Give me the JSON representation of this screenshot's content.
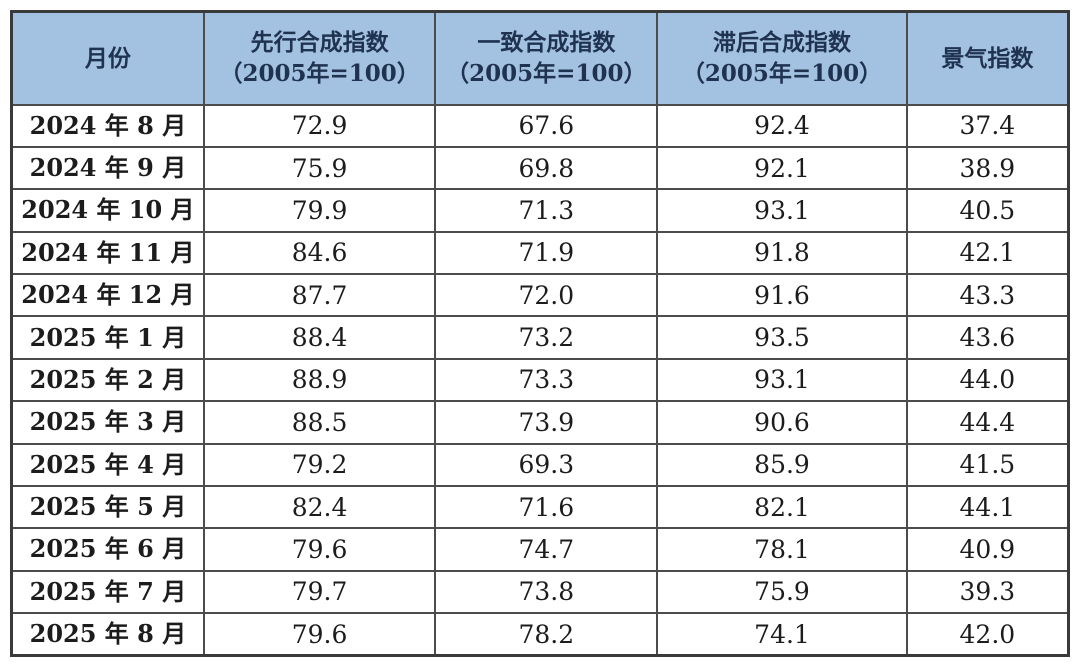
{
  "colors": {
    "header_bg": "#a3c1e0",
    "header_text": "#1f3351",
    "body_text": "#1c1c1c",
    "border_outer": "#3a3a3a",
    "border_inner": "#4c4c4c",
    "row_bg": "#ffffff"
  },
  "chart_data": {
    "type": "table",
    "title": "",
    "columns": [
      "月份",
      "先行合成指数（2005年=100）",
      "一致合成指数（2005年=100）",
      "滞后合成指数（2005年=100）",
      "景气指数"
    ],
    "rows": [
      [
        "2024 年 8 月",
        72.9,
        67.6,
        92.4,
        37.4
      ],
      [
        "2024 年 9 月",
        75.9,
        69.8,
        92.1,
        38.9
      ],
      [
        "2024 年 10 月",
        79.9,
        71.3,
        93.1,
        40.5
      ],
      [
        "2024 年 11 月",
        84.6,
        71.9,
        91.8,
        42.1
      ],
      [
        "2024 年 12 月",
        87.7,
        72.0,
        91.6,
        43.3
      ],
      [
        "2025 年 1 月",
        88.4,
        73.2,
        93.5,
        43.6
      ],
      [
        "2025 年 2 月",
        88.9,
        73.3,
        93.1,
        44.0
      ],
      [
        "2025 年 3 月",
        88.5,
        73.9,
        90.6,
        44.4
      ],
      [
        "2025 年 4 月",
        79.2,
        69.3,
        85.9,
        41.5
      ],
      [
        "2025 年 5 月",
        82.4,
        71.6,
        82.1,
        44.1
      ],
      [
        "2025 年 6 月",
        79.6,
        74.7,
        78.1,
        40.9
      ],
      [
        "2025 年 7 月",
        79.7,
        73.8,
        75.9,
        39.3
      ],
      [
        "2025 年 8 月",
        79.6,
        78.2,
        74.1,
        42.0
      ]
    ]
  },
  "table": {
    "headers": [
      {
        "line1": "月份",
        "line2": ""
      },
      {
        "line1": "先行合成指数",
        "line2": "（2005年=100）"
      },
      {
        "line1": "一致合成指数",
        "line2": "（2005年=100）"
      },
      {
        "line1": "滞后合成指数",
        "line2": "（2005年=100）"
      },
      {
        "line1": "景气指数",
        "line2": ""
      }
    ],
    "col_widths": [
      "18.2%",
      "21.9%",
      "21.0%",
      "23.6%",
      "15.3%"
    ],
    "rows": [
      {
        "month": "2024 年 8 月",
        "values": [
          "72.9",
          "67.6",
          "92.4",
          "37.4"
        ]
      },
      {
        "month": "2024 年 9 月",
        "values": [
          "75.9",
          "69.8",
          "92.1",
          "38.9"
        ]
      },
      {
        "month": "2024 年 10 月",
        "values": [
          "79.9",
          "71.3",
          "93.1",
          "40.5"
        ]
      },
      {
        "month": "2024 年 11 月",
        "values": [
          "84.6",
          "71.9",
          "91.8",
          "42.1"
        ]
      },
      {
        "month": "2024 年 12 月",
        "values": [
          "87.7",
          "72.0",
          "91.6",
          "43.3"
        ]
      },
      {
        "month": "2025 年 1 月",
        "values": [
          "88.4",
          "73.2",
          "93.5",
          "43.6"
        ]
      },
      {
        "month": "2025 年 2 月",
        "values": [
          "88.9",
          "73.3",
          "93.1",
          "44.0"
        ]
      },
      {
        "month": "2025 年 3 月",
        "values": [
          "88.5",
          "73.9",
          "90.6",
          "44.4"
        ]
      },
      {
        "month": "2025 年 4 月",
        "values": [
          "79.2",
          "69.3",
          "85.9",
          "41.5"
        ]
      },
      {
        "month": "2025 年 5 月",
        "values": [
          "82.4",
          "71.6",
          "82.1",
          "44.1"
        ]
      },
      {
        "month": "2025 年 6 月",
        "values": [
          "79.6",
          "74.7",
          "78.1",
          "40.9"
        ]
      },
      {
        "month": "2025 年 7 月",
        "values": [
          "79.7",
          "73.8",
          "75.9",
          "39.3"
        ]
      },
      {
        "month": "2025 年 8 月",
        "values": [
          "79.6",
          "78.2",
          "74.1",
          "42.0"
        ]
      }
    ]
  }
}
